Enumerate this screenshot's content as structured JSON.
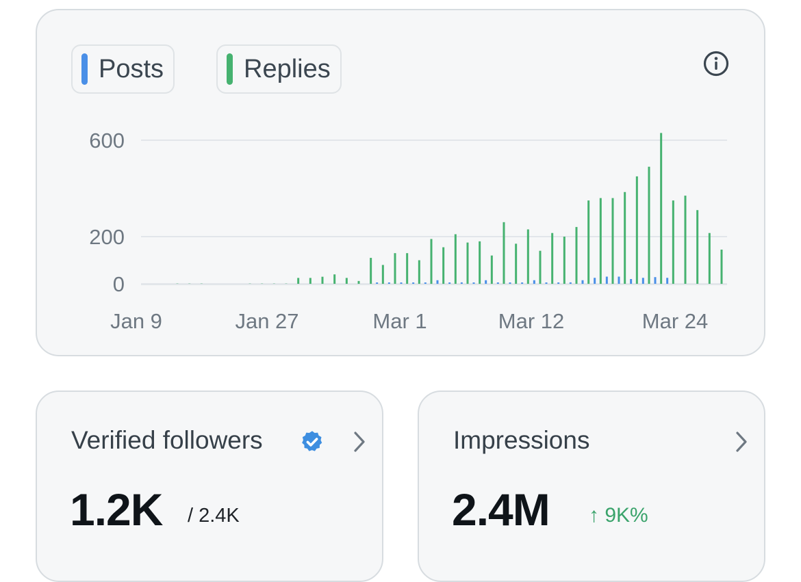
{
  "chart": {
    "legend": [
      {
        "label": "Posts",
        "color": "#4a8fe7"
      },
      {
        "label": "Replies",
        "color": "#46b270"
      }
    ],
    "info_icon": "info-icon"
  },
  "chart_data": {
    "type": "bar",
    "title": "",
    "xlabel": "",
    "ylabel": "",
    "ylim": [
      0,
      600
    ],
    "yticks": [
      "600",
      "200",
      "0"
    ],
    "xtick_labels": [
      "Jan 9",
      "Jan 27",
      "Mar 1",
      "Mar 12",
      "Mar 24"
    ],
    "series": [
      {
        "name": "Replies",
        "color": "#46b270",
        "values": [
          1,
          1,
          1,
          0,
          0,
          0,
          1,
          1,
          1,
          1,
          25,
          25,
          30,
          40,
          25,
          12,
          110,
          80,
          130,
          130,
          100,
          190,
          155,
          210,
          175,
          180,
          120,
          260,
          170,
          230,
          140,
          215,
          200,
          240,
          350,
          360,
          360,
          385,
          450,
          490,
          630,
          350,
          370,
          310,
          215,
          145
        ]
      },
      {
        "name": "Posts",
        "color": "#4a8fe7",
        "values": [
          0,
          0,
          0,
          0,
          0,
          0,
          0,
          0,
          0,
          0,
          0,
          0,
          0,
          0,
          0,
          0,
          2,
          2,
          3,
          3,
          4,
          15,
          4,
          6,
          4,
          15,
          3,
          3,
          4,
          15,
          4,
          4,
          6,
          15,
          25,
          30,
          30,
          20,
          25,
          28,
          25,
          0,
          0,
          0,
          0,
          0
        ]
      }
    ]
  },
  "followers": {
    "title": "Verified followers",
    "value": "1.2K",
    "total": "/ 2.4K"
  },
  "impressions": {
    "title": "Impressions",
    "value": "2.4M",
    "change": "↑ 9K%"
  }
}
